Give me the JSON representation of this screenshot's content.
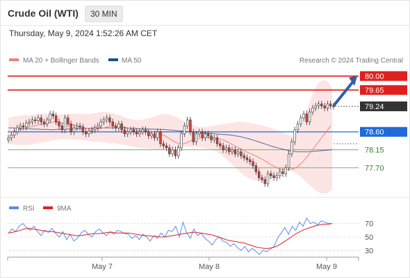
{
  "header": {
    "instrument": "Crude Oil (WTI)",
    "timeframe": "30 MIN",
    "datetime": "Thursday, May 9, 2024 1:52:26 AM CET"
  },
  "legend": {
    "ma20": "MA 20 + Bollinger Bands",
    "ma50": "MA 50",
    "credit": "Research © 2024 Trading Central",
    "rsi": "RSI",
    "rsi_ma": "9MA"
  },
  "colors": {
    "resistance": "#e0201e",
    "pivot": "#1f6ad8",
    "support": "#59b04a",
    "ma20": "#f08080",
    "ma50": "#1e4e8c",
    "bollinger_fill": "#fcdcdc",
    "candle_up": "#ffffff",
    "candle_down": "#d23f3a",
    "rsi": "#5b8ee6",
    "rsi_ma": "#e02020",
    "current": "#333333",
    "arrow": "#2e5fa8"
  },
  "chart_data": [
    {
      "type": "candlestick",
      "x_labels": [
        "May 7",
        "May 8",
        "May 9"
      ],
      "y_range": [
        77.2,
        80.2
      ],
      "levels": [
        {
          "label": "80.00",
          "value": 80.0,
          "kind": "resistance"
        },
        {
          "label": "79.65",
          "value": 79.65,
          "kind": "resistance"
        },
        {
          "label": "79.24",
          "value": 79.24,
          "kind": "current"
        },
        {
          "label": "78.60",
          "value": 78.6,
          "kind": "pivot"
        },
        {
          "label": "78.15",
          "value": 78.15,
          "kind": "support"
        },
        {
          "label": "77.70",
          "value": 77.7,
          "kind": "support"
        }
      ],
      "close": [
        78.45,
        78.52,
        78.6,
        78.7,
        78.75,
        78.72,
        78.82,
        78.85,
        78.9,
        78.88,
        78.95,
        78.85,
        78.8,
        78.9,
        79.05,
        79.0,
        78.85,
        78.75,
        78.65,
        78.95,
        78.8,
        78.6,
        78.7,
        78.75,
        78.72,
        78.6,
        78.55,
        78.62,
        78.65,
        78.7,
        78.75,
        78.85,
        78.9,
        78.95,
        78.85,
        78.75,
        78.7,
        78.8,
        78.65,
        78.55,
        78.6,
        78.65,
        78.6,
        78.55,
        78.6,
        78.65,
        78.6,
        78.5,
        78.55,
        78.45,
        78.6,
        78.3,
        78.25,
        78.2,
        78.05,
        78.15,
        78.0,
        78.2,
        78.55,
        78.75,
        78.9,
        78.6,
        78.35,
        78.55,
        78.6,
        78.45,
        78.55,
        78.5,
        78.4,
        78.45,
        78.3,
        78.25,
        78.15,
        78.2,
        78.1,
        78.15,
        78.05,
        78.1,
        78.0,
        77.95,
        77.9,
        77.85,
        77.75,
        77.6,
        77.45,
        77.4,
        77.3,
        77.55,
        77.5,
        77.45,
        77.5,
        77.6,
        77.55,
        77.7,
        78.05,
        78.35,
        78.65,
        78.8,
        78.95,
        79.05,
        78.85,
        79.1,
        79.2,
        79.25,
        79.3,
        79.25,
        79.2,
        79.3,
        79.25,
        79.24
      ],
      "ma20": [
        78.62,
        78.6,
        78.62,
        78.65,
        78.66,
        78.68,
        78.7,
        78.72,
        78.74,
        78.76,
        78.78,
        78.79,
        78.8,
        78.82,
        78.84,
        78.85,
        78.84,
        78.83,
        78.82,
        78.81,
        78.8,
        78.78,
        78.76,
        78.74,
        78.72,
        78.7,
        78.69,
        78.68,
        78.68,
        78.68,
        78.69,
        78.7,
        78.72,
        78.74,
        78.75,
        78.75,
        78.74,
        78.73,
        78.72,
        78.7,
        78.68,
        78.66,
        78.64,
        78.63,
        78.62,
        78.62,
        78.61,
        78.6,
        78.58,
        78.55,
        78.53,
        78.5,
        78.45,
        78.4,
        78.36,
        78.32,
        78.3,
        78.3,
        78.32,
        78.36,
        78.4,
        78.42,
        78.44,
        78.46,
        78.47,
        78.47,
        78.46,
        78.45,
        78.44,
        78.42,
        78.4,
        78.36,
        78.32,
        78.28,
        78.24,
        78.2,
        78.16,
        78.12,
        78.08,
        78.05,
        78.02,
        77.98,
        77.94,
        77.9,
        77.85,
        77.8,
        77.76,
        77.72,
        77.68,
        77.66,
        77.65,
        77.65,
        77.66,
        77.68,
        77.72,
        77.78,
        77.86,
        77.95,
        78.05,
        78.15,
        78.25,
        78.35,
        78.45,
        78.55,
        78.65,
        78.75
      ],
      "ma50": [
        78.7,
        78.7,
        78.69,
        78.68,
        78.68,
        78.67,
        78.67,
        78.66,
        78.66,
        78.65,
        78.66,
        78.66,
        78.67,
        78.67,
        78.68,
        78.68,
        78.69,
        78.69,
        78.7,
        78.7,
        78.7,
        78.7,
        78.7,
        78.7,
        78.7,
        78.69,
        78.69,
        78.68,
        78.68,
        78.67,
        78.67,
        78.66,
        78.66,
        78.65,
        78.64,
        78.63,
        78.62,
        78.61,
        78.6,
        78.59,
        78.58,
        78.57,
        78.56,
        78.55,
        78.54,
        78.53,
        78.52,
        78.5,
        78.48,
        78.45,
        78.42,
        78.38,
        78.34,
        78.3,
        78.26,
        78.22,
        78.19,
        78.16,
        78.13,
        78.11,
        78.1,
        78.1,
        78.1,
        78.11,
        78.12,
        78.13,
        78.14,
        78.15
      ],
      "bollinger_upper": [
        78.95,
        78.98,
        79.0,
        79.02,
        79.02,
        79.03,
        79.05,
        79.06,
        79.06,
        79.05,
        79.04,
        79.04,
        79.05,
        79.06,
        79.06,
        79.05,
        79.05,
        79.06,
        79.08,
        79.1,
        79.1,
        79.08,
        79.04,
        79.0,
        78.95,
        78.92,
        78.9,
        78.9,
        78.93,
        78.96,
        79.0,
        79.03,
        79.05,
        79.03,
        78.98,
        78.92,
        78.86,
        78.8,
        78.75,
        78.72,
        78.72,
        78.74,
        78.76,
        78.78,
        78.8,
        78.82,
        78.84,
        78.86,
        78.85,
        78.83,
        78.8,
        78.78,
        78.75,
        78.72,
        78.68,
        78.63,
        78.58,
        78.53,
        78.5,
        78.6,
        78.85,
        79.2,
        79.55,
        79.8,
        79.9,
        79.88,
        79.7
      ],
      "bollinger_lower": [
        78.3,
        78.28,
        78.27,
        78.27,
        78.28,
        78.3,
        78.32,
        78.35,
        78.38,
        78.4,
        78.42,
        78.42,
        78.41,
        78.4,
        78.38,
        78.36,
        78.35,
        78.34,
        78.33,
        78.32,
        78.3,
        78.28,
        78.25,
        78.22,
        78.2,
        78.18,
        78.17,
        78.16,
        78.16,
        78.17,
        78.18,
        78.2,
        78.22,
        78.23,
        78.22,
        78.2,
        78.18,
        78.15,
        78.1,
        78.0,
        77.88,
        77.75,
        77.62,
        77.5,
        77.42,
        77.38,
        77.37,
        77.38,
        77.42,
        77.5,
        77.6,
        77.65,
        77.6,
        77.5,
        77.38,
        77.25,
        77.12,
        77.05,
        77.05,
        77.15
      ],
      "forecast_arrow": {
        "from": 79.24,
        "to": 80.0
      }
    },
    {
      "type": "line",
      "title": "RSI",
      "y_ticks": [
        70,
        50,
        30
      ],
      "y_range": [
        20,
        82
      ],
      "rsi": [
        55,
        62,
        58,
        66,
        70,
        64,
        60,
        66,
        58,
        52,
        60,
        57,
        63,
        55,
        50,
        58,
        46,
        54,
        44,
        48,
        56,
        60,
        54,
        50,
        58,
        62,
        56,
        52,
        58,
        54,
        60,
        58,
        55,
        54,
        48,
        52,
        46,
        54,
        50,
        44,
        52,
        48,
        56,
        50,
        60,
        58,
        66,
        50,
        72,
        56,
        48,
        62,
        52,
        56,
        48,
        44,
        38,
        46,
        50,
        44,
        42,
        36,
        40,
        34,
        30,
        36,
        28,
        33,
        29,
        24,
        30,
        28,
        32,
        36,
        48,
        56,
        64,
        54,
        66,
        60,
        72,
        66,
        78,
        70,
        72,
        68,
        74,
        72,
        70,
        70
      ],
      "rsi_ma": [
        56,
        57,
        58,
        60,
        62,
        63,
        62,
        61,
        60,
        59,
        58,
        58,
        57,
        56,
        55,
        54,
        53,
        52,
        52,
        53,
        54,
        55,
        55,
        55,
        56,
        57,
        57,
        56,
        56,
        56,
        56,
        55,
        54,
        53,
        52,
        52,
        51,
        51,
        50,
        50,
        51,
        52,
        53,
        54,
        55,
        56,
        57,
        57,
        56,
        55,
        54,
        53,
        51,
        49,
        47,
        45,
        44,
        43,
        42,
        41,
        39,
        37,
        35,
        34,
        33,
        33,
        34,
        36,
        39,
        43,
        47,
        51,
        55,
        58,
        61,
        63,
        65,
        67,
        68,
        69,
        69,
        70
      ]
    }
  ]
}
